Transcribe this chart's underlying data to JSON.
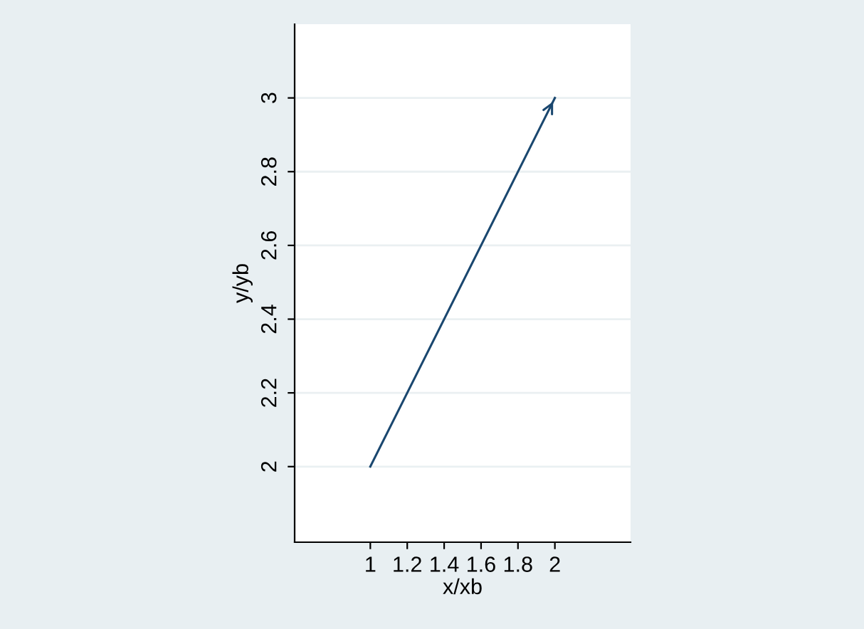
{
  "chart_data": {
    "type": "line",
    "xlabel": "x/xb",
    "ylabel": "y/yb",
    "x": [
      1,
      2
    ],
    "series": [
      {
        "color": "#1a476f",
        "values": [
          2,
          3
        ]
      }
    ],
    "xlim": [
      0.59,
      2.41
    ],
    "ylim": [
      1.795,
      3.2
    ],
    "xticks": [
      1,
      1.2,
      1.4,
      1.6,
      1.8,
      2
    ],
    "yticks": [
      2,
      2.2,
      2.4,
      2.6,
      2.8,
      3
    ],
    "grid": "y",
    "marker": "none",
    "line_style": "solid"
  }
}
